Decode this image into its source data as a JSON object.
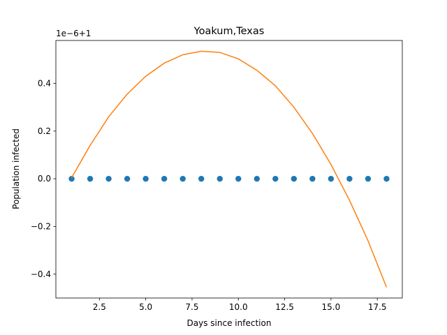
{
  "chart_data": {
    "type": "scatter",
    "title": "Yoakum,Texas",
    "xlabel": "Days since infection",
    "ylabel": "Population infected",
    "offset_text": "1e−6+1",
    "xlim": [
      0.15,
      18.85
    ],
    "ylim": [
      -0.5,
      0.58
    ],
    "x_ticks": [
      2.5,
      5.0,
      7.5,
      10.0,
      12.5,
      15.0,
      17.5
    ],
    "x_tick_labels": [
      "2.5",
      "5.0",
      "7.5",
      "10.0",
      "12.5",
      "15.0",
      "17.5"
    ],
    "y_ticks": [
      -0.4,
      -0.2,
      0.0,
      0.2,
      0.4
    ],
    "y_tick_labels": [
      "−0.4",
      "−0.2",
      "0.0",
      "0.2",
      "0.4"
    ],
    "grid": false,
    "x": [
      1,
      2,
      3,
      4,
      5,
      6,
      7,
      8,
      9,
      10,
      11,
      12,
      13,
      14,
      15,
      16,
      17,
      18
    ],
    "series": [
      {
        "kind": "scatter",
        "color": "#1f77b4",
        "values": [
          0,
          0,
          0,
          0,
          0,
          0,
          0,
          0,
          0,
          0,
          0,
          0,
          0,
          0,
          0,
          0,
          0,
          0
        ]
      },
      {
        "kind": "line",
        "color": "#ff7f0e",
        "values": [
          0.005,
          0.14,
          0.26,
          0.355,
          0.43,
          0.485,
          0.52,
          0.535,
          0.53,
          0.503,
          0.455,
          0.39,
          0.3,
          0.19,
          0.06,
          -0.09,
          -0.26,
          -0.455
        ]
      }
    ]
  }
}
